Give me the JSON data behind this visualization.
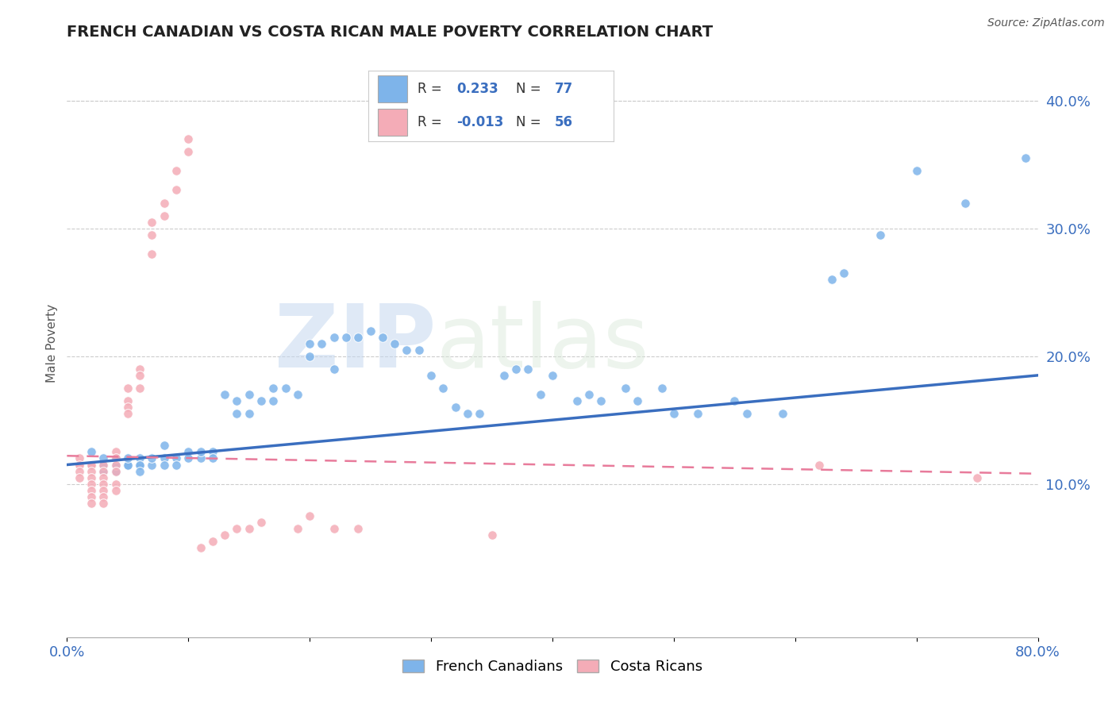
{
  "title": "FRENCH CANADIAN VS COSTA RICAN MALE POVERTY CORRELATION CHART",
  "source_text": "Source: ZipAtlas.com",
  "ylabel": "Male Poverty",
  "xlim": [
    0.0,
    0.8
  ],
  "ylim": [
    -0.02,
    0.44
  ],
  "x_ticks": [
    0.0,
    0.1,
    0.2,
    0.3,
    0.4,
    0.5,
    0.6,
    0.7,
    0.8
  ],
  "x_tick_labels": [
    "0.0%",
    "",
    "",
    "",
    "",
    "",
    "",
    "",
    "80.0%"
  ],
  "y_ticks_right": [
    0.1,
    0.2,
    0.3,
    0.4
  ],
  "y_tick_labels_right": [
    "10.0%",
    "20.0%",
    "30.0%",
    "40.0%"
  ],
  "french_color": "#7EB4EA",
  "costa_color": "#F4ACB7",
  "french_line_color": "#3A6EBF",
  "costa_line_color": "#E87B9B",
  "R_french": 0.233,
  "N_french": 77,
  "R_costa": -0.013,
  "N_costa": 56,
  "watermark_zip": "ZIP",
  "watermark_atlas": "atlas",
  "background_color": "#FFFFFF",
  "grid_color": "#CCCCCC",
  "french_scatter_x": [
    0.02,
    0.02,
    0.03,
    0.03,
    0.03,
    0.04,
    0.04,
    0.04,
    0.05,
    0.05,
    0.05,
    0.06,
    0.06,
    0.06,
    0.06,
    0.07,
    0.07,
    0.08,
    0.08,
    0.08,
    0.09,
    0.09,
    0.1,
    0.1,
    0.11,
    0.11,
    0.12,
    0.12,
    0.13,
    0.14,
    0.14,
    0.15,
    0.15,
    0.16,
    0.17,
    0.17,
    0.18,
    0.19,
    0.2,
    0.2,
    0.21,
    0.22,
    0.22,
    0.23,
    0.24,
    0.25,
    0.26,
    0.27,
    0.28,
    0.29,
    0.3,
    0.31,
    0.32,
    0.33,
    0.34,
    0.36,
    0.37,
    0.38,
    0.39,
    0.4,
    0.42,
    0.43,
    0.44,
    0.46,
    0.47,
    0.49,
    0.5,
    0.52,
    0.55,
    0.56,
    0.59,
    0.63,
    0.64,
    0.67,
    0.7,
    0.74,
    0.79
  ],
  "french_scatter_y": [
    0.115,
    0.125,
    0.12,
    0.115,
    0.11,
    0.115,
    0.12,
    0.11,
    0.115,
    0.115,
    0.12,
    0.115,
    0.12,
    0.115,
    0.11,
    0.115,
    0.12,
    0.12,
    0.115,
    0.13,
    0.12,
    0.115,
    0.125,
    0.12,
    0.12,
    0.125,
    0.125,
    0.12,
    0.17,
    0.155,
    0.165,
    0.17,
    0.155,
    0.165,
    0.165,
    0.175,
    0.175,
    0.17,
    0.2,
    0.21,
    0.21,
    0.215,
    0.19,
    0.215,
    0.215,
    0.22,
    0.215,
    0.21,
    0.205,
    0.205,
    0.185,
    0.175,
    0.16,
    0.155,
    0.155,
    0.185,
    0.19,
    0.19,
    0.17,
    0.185,
    0.165,
    0.17,
    0.165,
    0.175,
    0.165,
    0.175,
    0.155,
    0.155,
    0.165,
    0.155,
    0.155,
    0.26,
    0.265,
    0.295,
    0.345,
    0.32,
    0.355
  ],
  "costa_scatter_x": [
    0.01,
    0.01,
    0.01,
    0.01,
    0.01,
    0.02,
    0.02,
    0.02,
    0.02,
    0.02,
    0.02,
    0.02,
    0.02,
    0.02,
    0.03,
    0.03,
    0.03,
    0.03,
    0.03,
    0.03,
    0.03,
    0.04,
    0.04,
    0.04,
    0.04,
    0.04,
    0.04,
    0.05,
    0.05,
    0.05,
    0.05,
    0.06,
    0.06,
    0.06,
    0.07,
    0.07,
    0.07,
    0.08,
    0.08,
    0.09,
    0.09,
    0.1,
    0.1,
    0.11,
    0.12,
    0.13,
    0.14,
    0.15,
    0.16,
    0.19,
    0.2,
    0.22,
    0.24,
    0.35,
    0.62,
    0.75
  ],
  "costa_scatter_y": [
    0.115,
    0.12,
    0.115,
    0.11,
    0.105,
    0.115,
    0.115,
    0.115,
    0.11,
    0.105,
    0.1,
    0.095,
    0.09,
    0.085,
    0.115,
    0.11,
    0.105,
    0.1,
    0.095,
    0.09,
    0.085,
    0.125,
    0.12,
    0.115,
    0.11,
    0.1,
    0.095,
    0.175,
    0.165,
    0.16,
    0.155,
    0.19,
    0.185,
    0.175,
    0.28,
    0.295,
    0.305,
    0.31,
    0.32,
    0.33,
    0.345,
    0.36,
    0.37,
    0.05,
    0.055,
    0.06,
    0.065,
    0.065,
    0.07,
    0.065,
    0.075,
    0.065,
    0.065,
    0.06,
    0.115,
    0.105
  ],
  "french_line_x0": 0.0,
  "french_line_y0": 0.115,
  "french_line_x1": 0.8,
  "french_line_y1": 0.185,
  "costa_line_x0": 0.0,
  "costa_line_y0": 0.122,
  "costa_line_x1": 0.8,
  "costa_line_y1": 0.108
}
